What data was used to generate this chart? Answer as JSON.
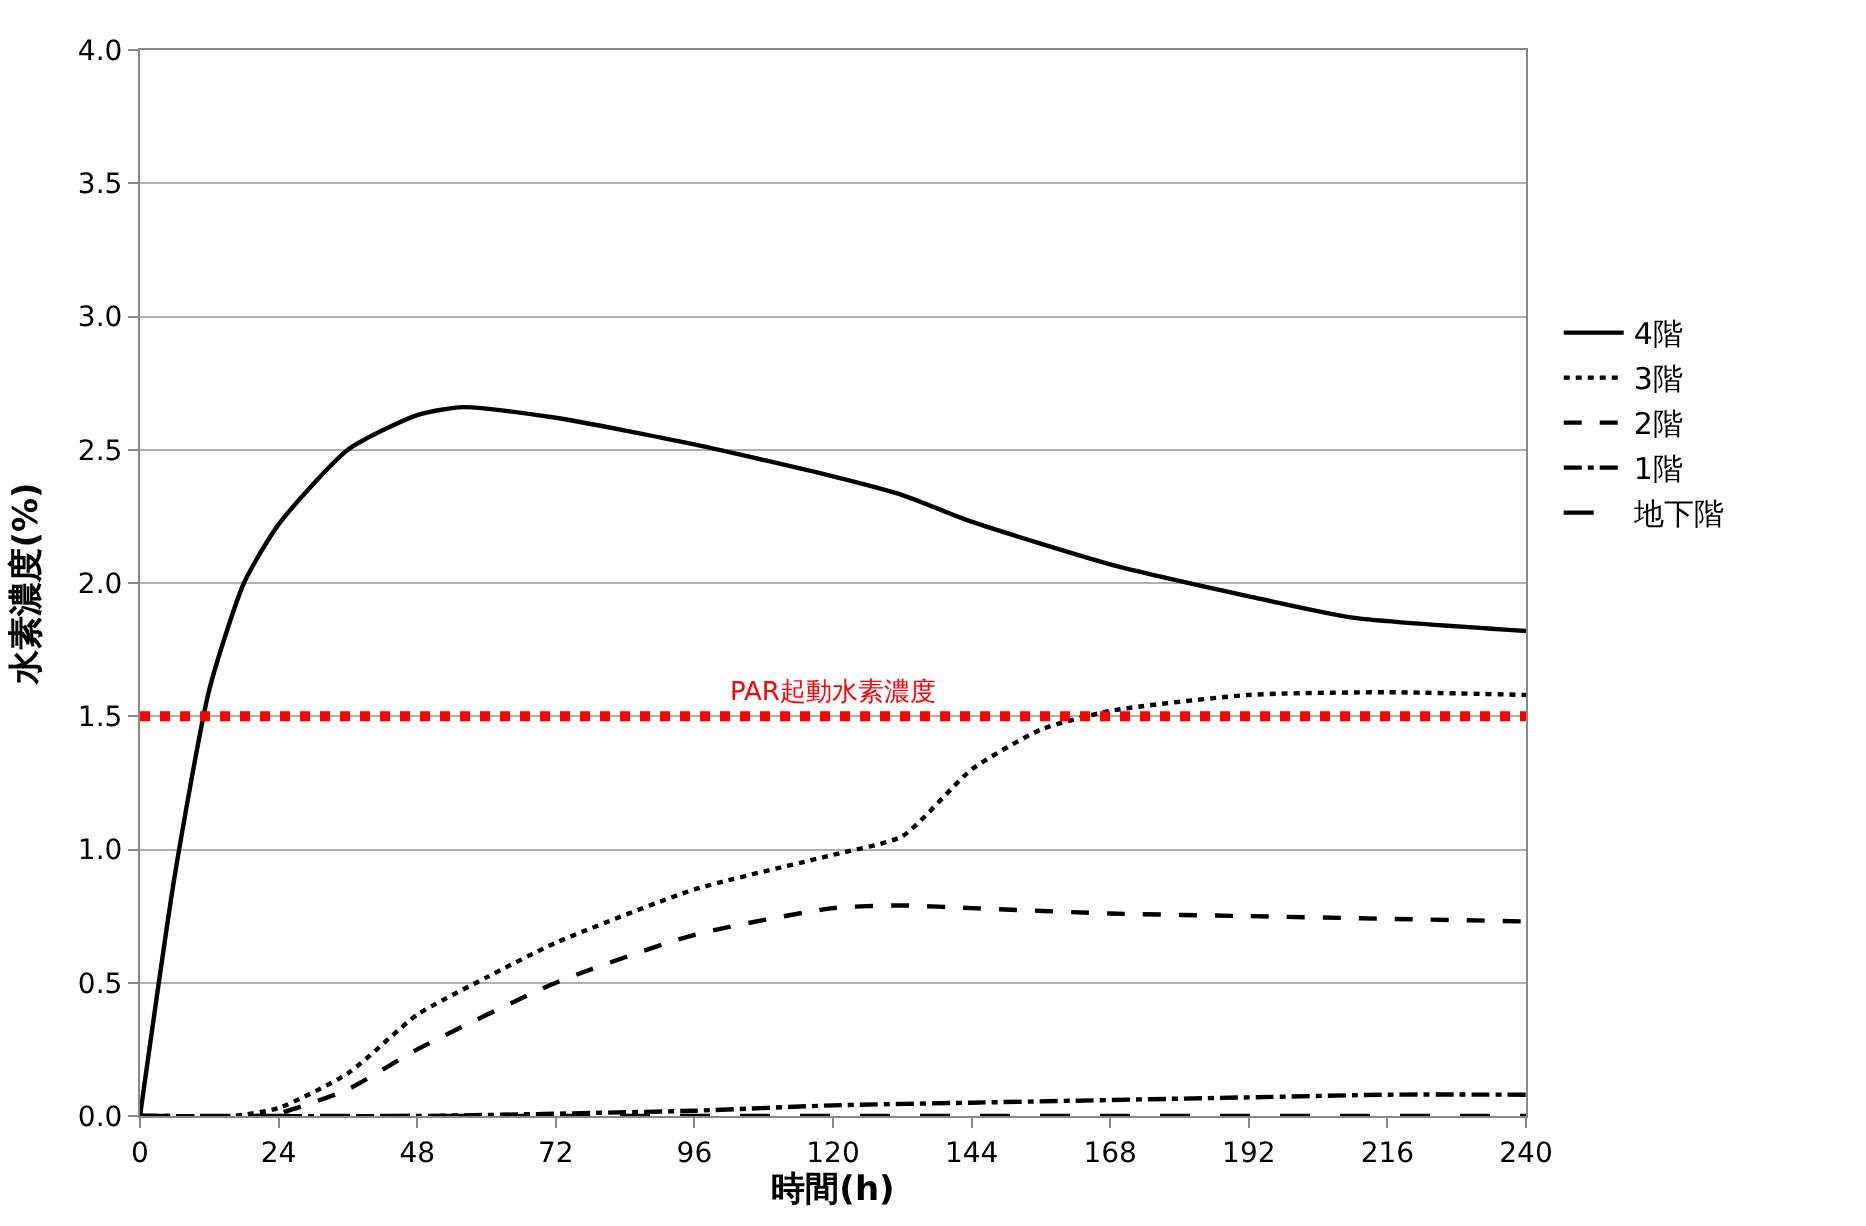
{
  "chart_data": {
    "type": "line",
    "xlabel": "時間(h)",
    "ylabel": "水素濃度(%)",
    "xlim": [
      0,
      240
    ],
    "xticks": [
      0,
      24,
      48,
      72,
      96,
      120,
      144,
      168,
      192,
      216,
      240
    ],
    "ylim": [
      0,
      4.0
    ],
    "yticks": [
      {
        "value": 0,
        "label": "0.0"
      },
      {
        "value": 0.5,
        "label": "0.5"
      },
      {
        "value": 1,
        "label": "1.0"
      },
      {
        "value": 1.5,
        "label": "1.5"
      },
      {
        "value": 2,
        "label": "2.0"
      },
      {
        "value": 2.5,
        "label": "2.5"
      },
      {
        "value": 3,
        "label": "3.0"
      },
      {
        "value": 3.5,
        "label": "3.5"
      },
      {
        "value": 4,
        "label": "4.0"
      }
    ],
    "grid": "y",
    "legend": "right",
    "marker": "none",
    "series": [
      {
        "name": "4階",
        "color": "#000000",
        "line_style": "solid",
        "x": [
          0,
          6,
          12,
          18,
          24,
          36,
          48,
          56,
          72,
          96,
          120,
          132,
          144,
          168,
          192,
          210,
          240
        ],
        "values": [
          0,
          0.9,
          1.6,
          2.0,
          2.22,
          2.5,
          2.63,
          2.66,
          2.62,
          2.52,
          2.4,
          2.33,
          2.23,
          2.07,
          1.95,
          1.87,
          1.82
        ]
      },
      {
        "name": "3階",
        "color": "#000000",
        "line_style": "dotted",
        "x": [
          0,
          16,
          24,
          36,
          48,
          60,
          72,
          96,
          120,
          132,
          144,
          156,
          168,
          192,
          216,
          240
        ],
        "values": [
          0,
          0,
          0.03,
          0.16,
          0.38,
          0.52,
          0.65,
          0.85,
          0.98,
          1.05,
          1.3,
          1.45,
          1.52,
          1.58,
          1.59,
          1.58
        ]
      },
      {
        "name": "2階",
        "color": "#000000",
        "line_style": "dash",
        "x": [
          0,
          20,
          24,
          36,
          48,
          72,
          96,
          120,
          132,
          144,
          168,
          192,
          240
        ],
        "values": [
          0,
          0,
          0.01,
          0.1,
          0.25,
          0.5,
          0.68,
          0.78,
          0.79,
          0.78,
          0.76,
          0.75,
          0.73
        ]
      },
      {
        "name": "1階",
        "color": "#000000",
        "line_style": "dashdot",
        "x": [
          0,
          48,
          96,
          120,
          144,
          192,
          216,
          240
        ],
        "values": [
          0,
          0,
          0.02,
          0.04,
          0.05,
          0.07,
          0.08,
          0.08
        ]
      },
      {
        "name": "地下階",
        "color": "#000000",
        "line_style": "longdash",
        "x": [
          0,
          240
        ],
        "values": [
          0,
          0
        ]
      }
    ],
    "ref_lines": [
      {
        "axis": "y",
        "value": 1.5,
        "label": "PAR起動水素濃度",
        "color": "#ff0000",
        "line_style": "dot"
      }
    ]
  }
}
